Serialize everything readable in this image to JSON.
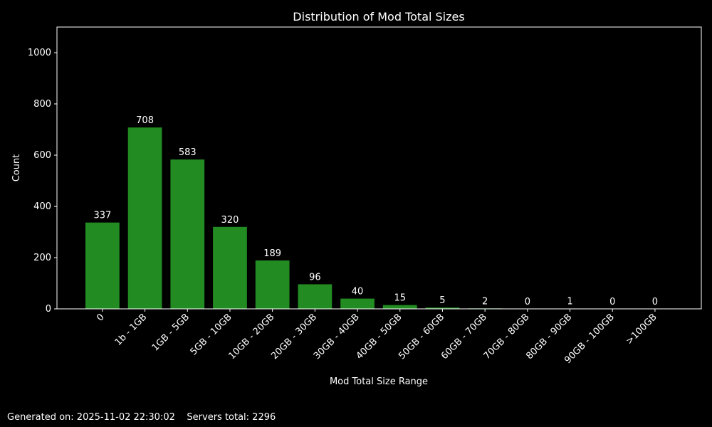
{
  "chart_data": {
    "type": "bar",
    "title": "Distribution of Mod Total Sizes",
    "xlabel": "Mod Total Size Range",
    "ylabel": "Count",
    "categories": [
      "0",
      "1b - 1GB",
      "1GB - 5GB",
      "5GB - 10GB",
      "10GB - 20GB",
      "20GB - 30GB",
      "30GB - 40GB",
      "40GB - 50GB",
      "50GB - 60GB",
      "60GB - 70GB",
      "70GB - 80GB",
      "80GB - 90GB",
      "90GB - 100GB",
      ">100GB"
    ],
    "values": [
      337,
      708,
      583,
      320,
      189,
      96,
      40,
      15,
      5,
      2,
      0,
      1,
      0,
      0
    ],
    "ylim": [
      0,
      1100
    ],
    "yticks": [
      0,
      200,
      400,
      600,
      800,
      1000
    ],
    "grid": false,
    "bar_color": "#228b22",
    "background": "#000000",
    "foreground": "#ffffff"
  },
  "footer": {
    "generated": "Generated on: 2025-11-02 22:30:02",
    "servers": "Servers total: 2296"
  }
}
